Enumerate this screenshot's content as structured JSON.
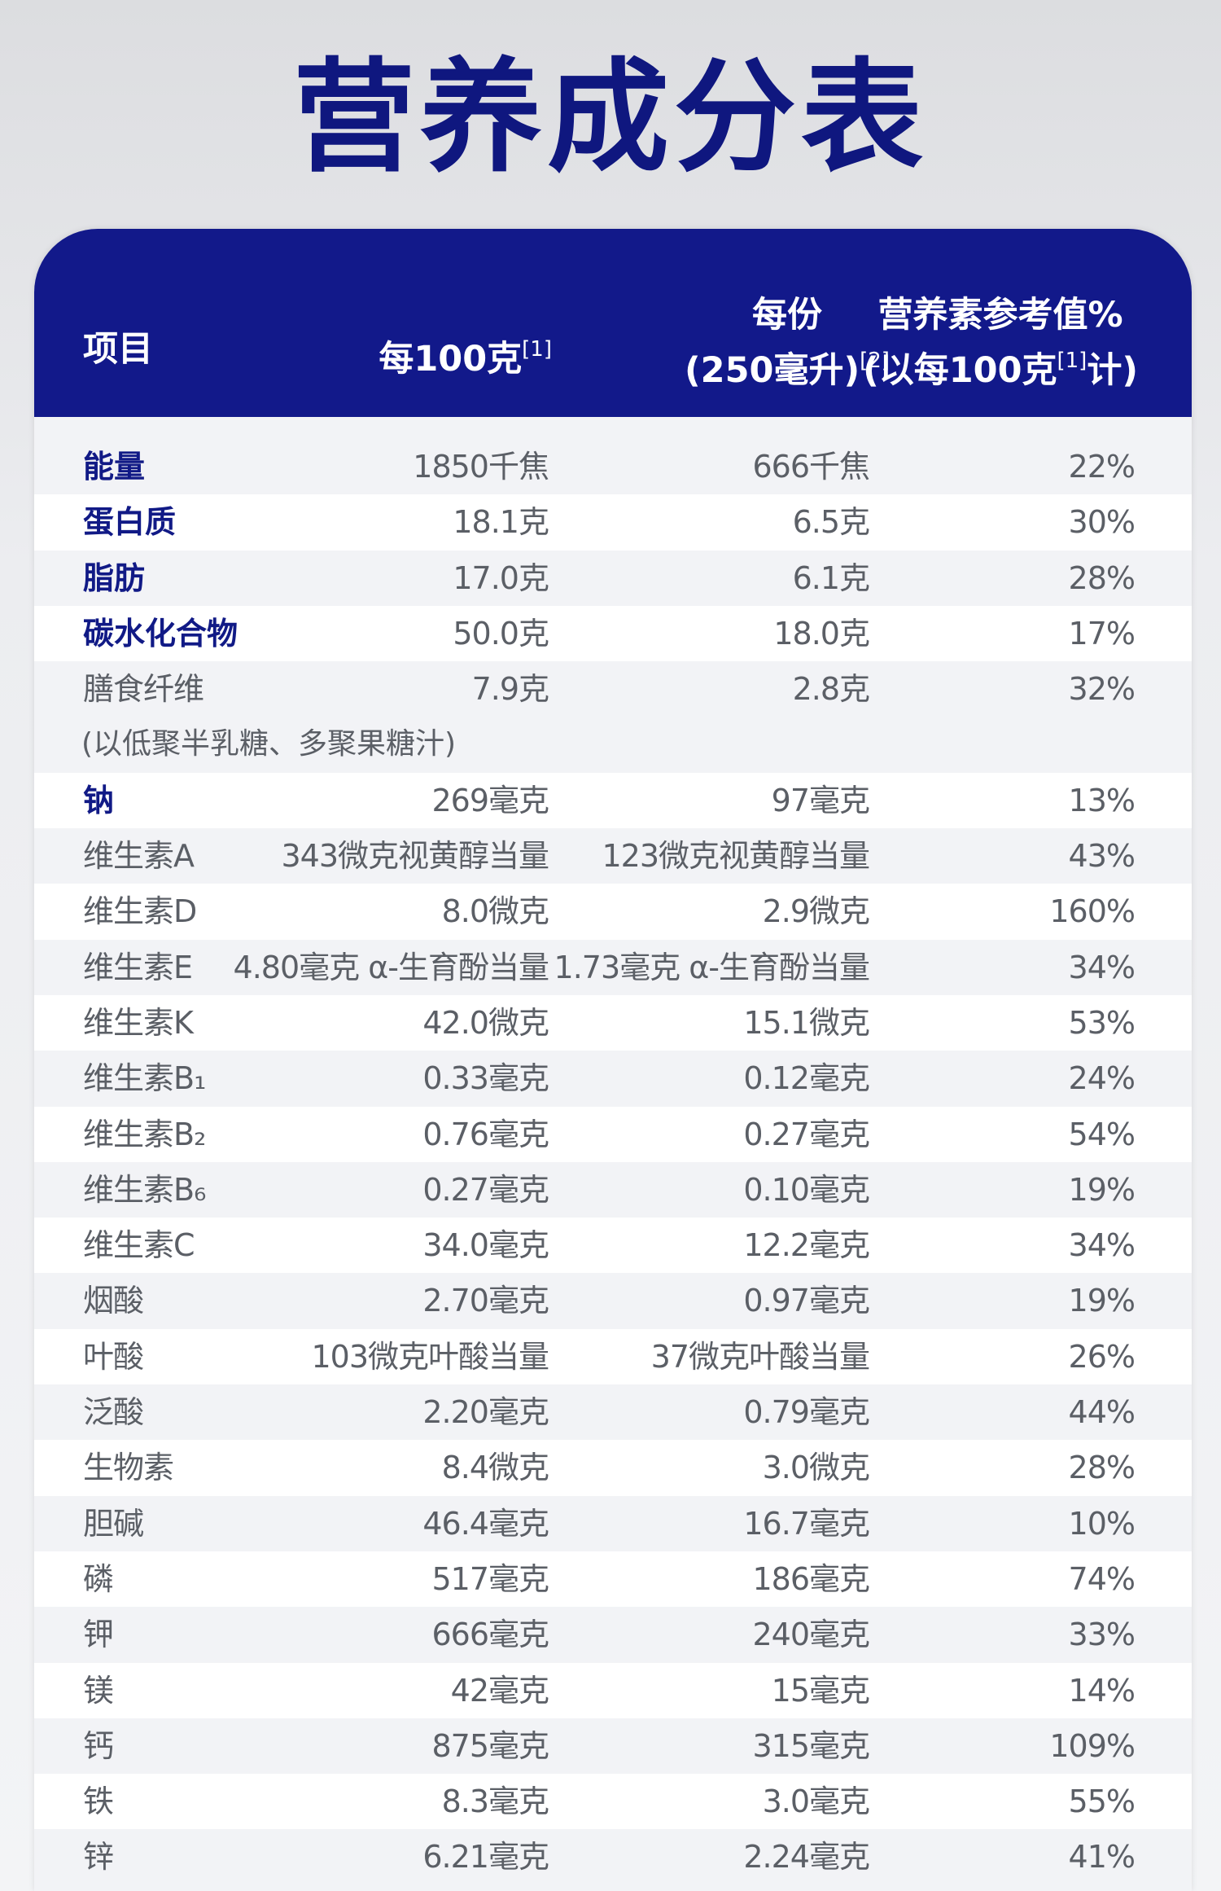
{
  "title": "营养成分表",
  "header": {
    "item": "项目",
    "per100": "每100克",
    "per100_ref": "[1]",
    "serving_line1": "每份",
    "serving_line2": "(250毫升)",
    "serving_ref": "[2]",
    "nrv_line1": "营养素参考值%",
    "nrv_line2_a": "(以每100克",
    "nrv_ref": "[1]",
    "nrv_line2_b": "计)"
  },
  "rows": [
    {
      "name": "能量",
      "per100": "1850千焦",
      "serving": "666千焦",
      "nrv": "22%",
      "bold": true
    },
    {
      "name": "蛋白质",
      "per100": "18.1克",
      "serving": "6.5克",
      "nrv": "30%",
      "bold": true
    },
    {
      "name": "脂肪",
      "per100": "17.0克",
      "serving": "6.1克",
      "nrv": "28%",
      "bold": true
    },
    {
      "name": "碳水化合物",
      "per100": "50.0克",
      "serving": "18.0克",
      "nrv": "17%",
      "bold": true
    },
    {
      "name": "膳食纤维",
      "sub": "(以低聚半乳糖、多聚果糖汁)",
      "per100": "7.9克",
      "serving": "2.8克",
      "nrv": "32%",
      "bold": false
    },
    {
      "name": "钠",
      "per100": "269毫克",
      "serving": "97毫克",
      "nrv": "13%",
      "bold": true
    },
    {
      "name": "维生素A",
      "per100": "343微克视黄醇当量",
      "serving": "123微克视黄醇当量",
      "nrv": "43%",
      "bold": false
    },
    {
      "name": "维生素D",
      "per100": "8.0微克",
      "serving": "2.9微克",
      "nrv": "160%",
      "bold": false
    },
    {
      "name": "维生素E",
      "per100": "4.80毫克 α-生育酚当量",
      "serving": "1.73毫克 α-生育酚当量",
      "nrv": "34%",
      "bold": false
    },
    {
      "name": "维生素K",
      "per100": "42.0微克",
      "serving": "15.1微克",
      "nrv": "53%",
      "bold": false
    },
    {
      "name": "维生素B₁",
      "per100": "0.33毫克",
      "serving": "0.12毫克",
      "nrv": "24%",
      "bold": false
    },
    {
      "name": "维生素B₂",
      "per100": "0.76毫克",
      "serving": "0.27毫克",
      "nrv": "54%",
      "bold": false
    },
    {
      "name": "维生素B₆",
      "per100": "0.27毫克",
      "serving": "0.10毫克",
      "nrv": "19%",
      "bold": false
    },
    {
      "name": "维生素C",
      "per100": "34.0毫克",
      "serving": "12.2毫克",
      "nrv": "34%",
      "bold": false
    },
    {
      "name": "烟酸",
      "per100": "2.70毫克",
      "serving": "0.97毫克",
      "nrv": "19%",
      "bold": false
    },
    {
      "name": "叶酸",
      "per100": "103微克叶酸当量",
      "serving": "37微克叶酸当量",
      "nrv": "26%",
      "bold": false
    },
    {
      "name": "泛酸",
      "per100": "2.20毫克",
      "serving": "0.79毫克",
      "nrv": "44%",
      "bold": false
    },
    {
      "name": "生物素",
      "per100": "8.4微克",
      "serving": "3.0微克",
      "nrv": "28%",
      "bold": false
    },
    {
      "name": "胆碱",
      "per100": "46.4毫克",
      "serving": "16.7毫克",
      "nrv": "10%",
      "bold": false
    },
    {
      "name": "磷",
      "per100": "517毫克",
      "serving": "186毫克",
      "nrv": "74%",
      "bold": false
    },
    {
      "name": "钾",
      "per100": "666毫克",
      "serving": "240毫克",
      "nrv": "33%",
      "bold": false
    },
    {
      "name": "镁",
      "per100": "42毫克",
      "serving": "15毫克",
      "nrv": "14%",
      "bold": false
    },
    {
      "name": "钙",
      "per100": "875毫克",
      "serving": "315毫克",
      "nrv": "109%",
      "bold": false
    },
    {
      "name": "铁",
      "per100": "8.3毫克",
      "serving": "3.0毫克",
      "nrv": "55%",
      "bold": false
    },
    {
      "name": "锌",
      "per100": "6.21毫克",
      "serving": "2.24毫克",
      "nrv": "41%",
      "bold": false
    }
  ]
}
